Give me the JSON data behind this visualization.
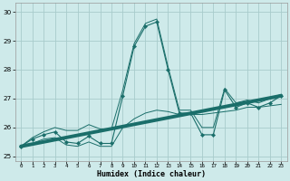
{
  "title": "",
  "xlabel": "Humidex (Indice chaleur)",
  "ylabel": "",
  "xlim": [
    -0.5,
    23.5
  ],
  "ylim": [
    24.85,
    30.3
  ],
  "yticks": [
    25,
    26,
    27,
    28,
    29,
    30
  ],
  "xticks": [
    0,
    1,
    2,
    3,
    4,
    5,
    6,
    7,
    8,
    9,
    10,
    11,
    12,
    13,
    14,
    15,
    16,
    17,
    18,
    19,
    20,
    21,
    22,
    23
  ],
  "bg_color": "#ceeaea",
  "grid_color": "#a8cccc",
  "line_color": "#1a6e6a",
  "jagged_x": [
    0,
    1,
    2,
    3,
    4,
    5,
    6,
    7,
    8,
    9,
    10,
    11,
    12,
    13,
    14,
    15,
    16,
    17,
    18,
    19,
    20,
    21,
    22,
    23
  ],
  "jagged_y": [
    25.35,
    25.6,
    25.75,
    25.85,
    25.5,
    25.45,
    25.7,
    25.45,
    25.45,
    27.1,
    28.8,
    29.5,
    29.65,
    28.0,
    26.5,
    26.5,
    25.75,
    25.75,
    27.3,
    26.7,
    26.85,
    26.7,
    26.85,
    27.1
  ],
  "min_y": [
    25.35,
    25.45,
    25.6,
    25.65,
    25.4,
    25.35,
    25.5,
    25.35,
    25.35,
    26.0,
    26.3,
    26.5,
    26.6,
    26.55,
    26.45,
    26.45,
    26.45,
    26.5,
    26.55,
    26.6,
    26.7,
    26.7,
    26.75,
    26.8
  ],
  "max_y": [
    25.35,
    25.65,
    25.85,
    26.0,
    25.9,
    25.9,
    26.1,
    25.95,
    25.95,
    27.3,
    28.9,
    29.6,
    29.75,
    28.1,
    26.6,
    26.6,
    26.0,
    26.0,
    27.35,
    26.85,
    26.95,
    26.85,
    27.0,
    27.15
  ],
  "trend_x": [
    0,
    23
  ],
  "trend_y": [
    25.35,
    27.1
  ]
}
